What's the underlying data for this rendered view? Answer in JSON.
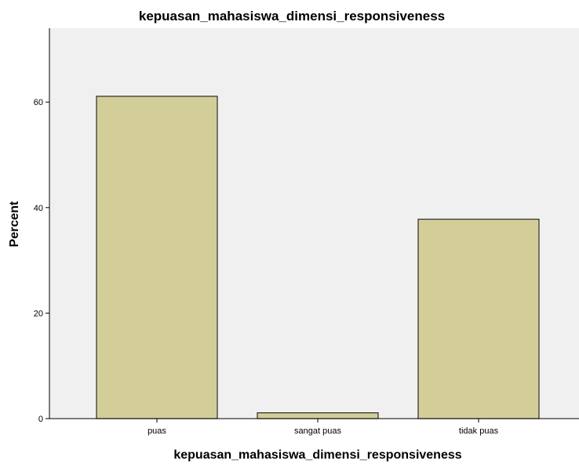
{
  "chart_data": {
    "type": "bar",
    "title": "kepuasan_mahasiswa_dimensi_responsiveness",
    "xlabel": "kepuasan_mahasiswa_dimensi_responsiveness",
    "ylabel": "Percent",
    "categories": [
      "puas",
      "sangat puas",
      "tidak puas"
    ],
    "values": [
      61.1,
      1.1,
      37.8
    ],
    "ylim": [
      0,
      74
    ],
    "yticks": [
      0,
      20,
      40,
      60
    ],
    "ytick_labels": [
      "0",
      "20",
      "40",
      "60"
    ],
    "grid": false,
    "legend": "none",
    "colors": {
      "bar_fill": "#d3ce97",
      "bar_stroke": "#2b2b2b",
      "plot_background": "#f0f0f0",
      "axis": "#000000"
    }
  }
}
